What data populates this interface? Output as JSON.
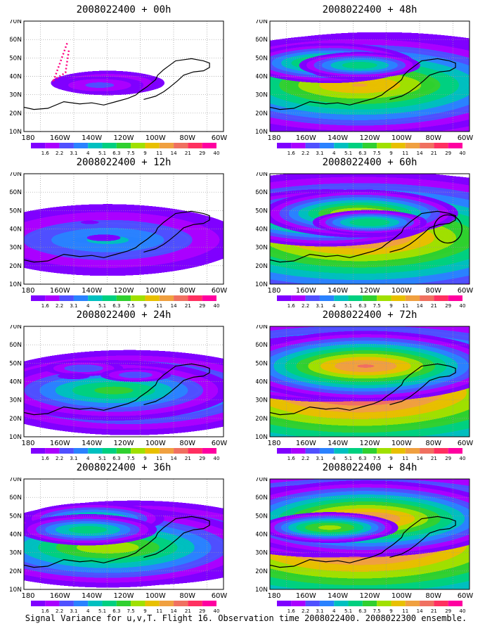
{
  "colors": [
    "#8000ff",
    "#aa00ff",
    "#5050ff",
    "#2a82ff",
    "#00c0c0",
    "#00d080",
    "#30d030",
    "#a0e000",
    "#e8c000",
    "#f0a040",
    "#f07060",
    "#ff3060",
    "#ff00a0"
  ],
  "colorbar_labels": [
    "1.6",
    "2.2",
    "3.1",
    "4",
    "5.1",
    "6.3",
    "7.5",
    "9",
    "11",
    "14",
    "21",
    "29",
    "40"
  ],
  "lon_labels": [
    "180",
    "160W",
    "140W",
    "120W",
    "100W",
    "80W",
    "60W"
  ],
  "lat_labels": [
    "70N",
    "60N",
    "50N",
    "40N",
    "30N",
    "20N",
    "10N"
  ],
  "panels": [
    {
      "title": "2008022400 + 00h",
      "blobs": [
        [
          1,
          42,
          6,
          14,
          3,
          9
        ],
        [
          0.1,
          38,
          8,
          10,
          4,
          8
        ],
        [
          0.25,
          36,
          -4,
          8,
          3,
          5
        ],
        [
          0.32,
          27,
          -2,
          6,
          2,
          4
        ],
        [
          0.75,
          35,
          -10,
          5,
          2,
          2
        ]
      ]
    },
    {
      "title": "2008022400 + 12h",
      "blobs": [
        [
          0.55,
          45,
          8,
          20,
          5,
          10
        ],
        [
          1.1,
          42,
          10,
          30,
          5,
          10
        ],
        [
          1.35,
          40,
          8,
          10,
          3,
          6
        ],
        [
          0.6,
          33,
          -6,
          12,
          3,
          4
        ]
      ]
    },
    {
      "title": "2008022400 + 24h",
      "blobs": [
        [
          0.48,
          53,
          10,
          40,
          4,
          8
        ],
        [
          0.5,
          45,
          8,
          25,
          5,
          8
        ],
        [
          0.48,
          30,
          -12,
          12,
          4,
          3
        ],
        [
          0.2,
          56,
          -6,
          18,
          2,
          4
        ],
        [
          0.55,
          25,
          -5,
          15,
          2,
          3
        ]
      ]
    },
    {
      "title": "2008022400 + 36h",
      "blobs": [
        [
          0.45,
          55,
          8,
          35,
          4,
          9
        ],
        [
          0.5,
          42,
          12,
          30,
          5,
          9
        ],
        [
          0.3,
          35,
          -14,
          25,
          4,
          3
        ],
        [
          0.7,
          32,
          -4,
          22,
          3,
          5
        ]
      ]
    },
    {
      "title": "2008022400 + 48h",
      "blobs": [
        [
          0.45,
          55,
          10,
          45,
          4,
          9
        ],
        [
          0.44,
          45,
          8,
          35,
          5,
          10
        ],
        [
          0.5,
          30,
          -12,
          25,
          4,
          4
        ],
        [
          0.15,
          42,
          -5,
          15,
          3,
          3
        ],
        [
          0.8,
          45,
          -10,
          20,
          3,
          4
        ]
      ]
    },
    {
      "title": "2008022400 + 60h",
      "blobs": [
        [
          0.5,
          55,
          10,
          50,
          4,
          10
        ],
        [
          0.45,
          45,
          8,
          40,
          6,
          11
        ],
        [
          0.5,
          28,
          -10,
          30,
          5,
          4
        ],
        [
          0.8,
          45,
          -14,
          25,
          4,
          5
        ],
        [
          0.2,
          50,
          -6,
          20,
          3,
          3
        ]
      ]
    },
    {
      "title": "2008022400 + 72h",
      "blobs": [
        [
          0.5,
          55,
          12,
          55,
          4,
          11
        ],
        [
          0.5,
          45,
          10,
          45,
          6,
          12
        ],
        [
          0.5,
          28,
          -12,
          30,
          5,
          5
        ],
        [
          0.75,
          48,
          -14,
          30,
          4,
          7
        ]
      ]
    },
    {
      "title": "2008022400 + 84h",
      "blobs": [
        [
          0.5,
          55,
          12,
          55,
          4,
          11
        ],
        [
          0.35,
          45,
          10,
          45,
          6,
          12
        ],
        [
          0.5,
          28,
          -12,
          30,
          5,
          6
        ],
        [
          0.75,
          48,
          -14,
          30,
          4,
          8
        ],
        [
          0.7,
          30,
          -6,
          20,
          3,
          4
        ]
      ]
    }
  ],
  "caption": "Signal Variance for u,v,T. Flight 16. Observation time 2008022400. 2008022300 ensemble."
}
